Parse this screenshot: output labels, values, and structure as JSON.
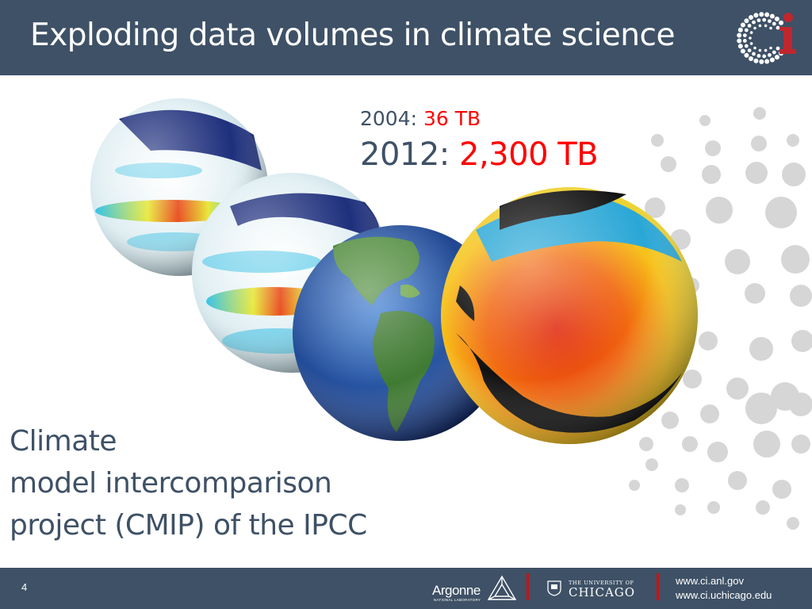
{
  "header": {
    "title": "Exploding data volumes in climate science",
    "logo_name": "ci-logo"
  },
  "stats": {
    "line1": {
      "year": "2004:",
      "value": "36 TB"
    },
    "line2": {
      "year": "2012:",
      "value": "2,300 TB"
    }
  },
  "caption": {
    "lines": [
      "Climate",
      "model intercomparison",
      "project (CMIP) of the IPCC"
    ]
  },
  "illustration": {
    "globes": [
      "sea-surface-temperature-anomaly-globe",
      "sea-surface-temperature-anomaly-globe",
      "earth-topography-globe",
      "ocean-temperature-globe"
    ]
  },
  "footer": {
    "page_number": "4",
    "argonne_name": "Argonne",
    "argonne_sub": "NATIONAL LABORATORY",
    "uchicago_sub": "THE UNIVERSITY OF",
    "uchicago_name": "CHICAGO",
    "urls": [
      "www.ci.anl.gov",
      "www.ci.uchicago.edu"
    ]
  },
  "colors": {
    "header_bg": "#3e5166",
    "text_main": "#3e5166",
    "accent_red": "#ff0000",
    "separator_red": "#cc1111",
    "dots_grey": "#d6d6d6"
  }
}
